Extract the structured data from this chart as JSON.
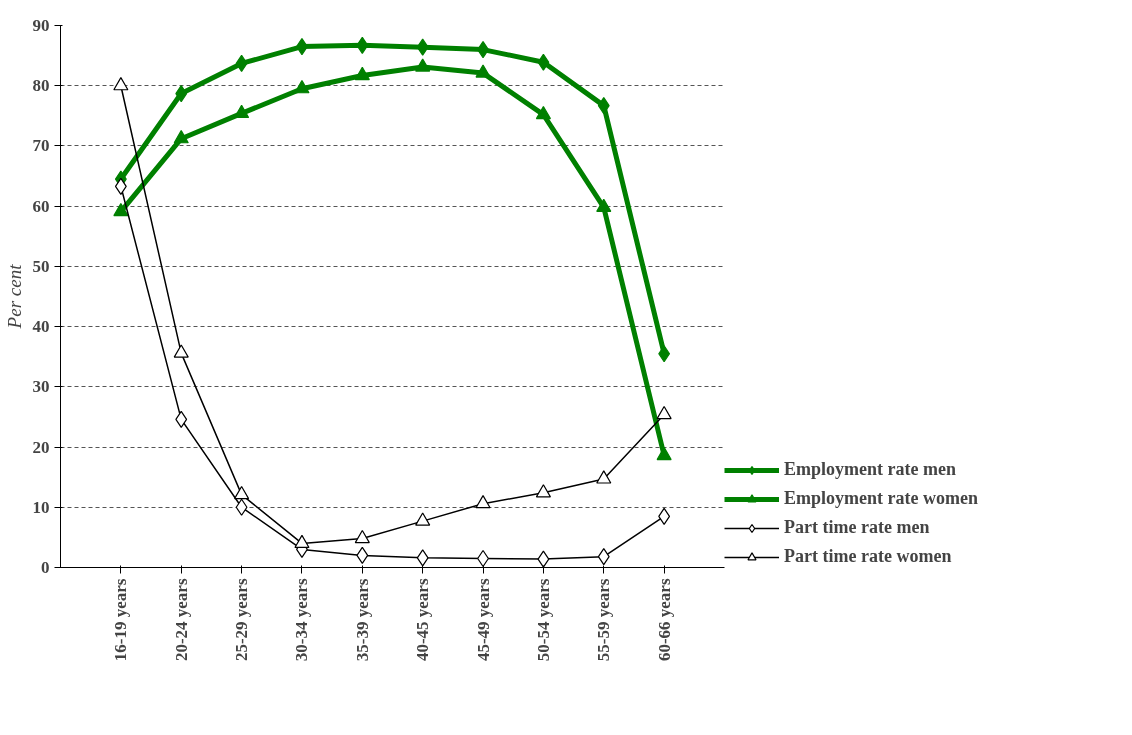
{
  "chart_data": {
    "type": "line",
    "ylabel": "Per cent",
    "categories": [
      "16-19 years",
      "20-24 years",
      "25-29 years",
      "30-34 years",
      "35-39 years",
      "40-45 years",
      "45-49 years",
      "50-54 years",
      "55-59 years",
      "60-66 years"
    ],
    "series": [
      {
        "name": "Employment rate men",
        "color": "#008000",
        "marker": "diamond",
        "values": [
          64.5,
          78.7,
          83.7,
          86.5,
          86.7,
          86.4,
          86.0,
          83.9,
          76.7,
          35.5
        ]
      },
      {
        "name": "Employment rate women",
        "color": "#008000",
        "marker": "triangle",
        "values": [
          59.1,
          71.2,
          75.4,
          79.5,
          81.7,
          83.1,
          82.1,
          75.2,
          59.8,
          18.6
        ]
      },
      {
        "name": "Part time rate men",
        "color": "#000000",
        "marker": "diamond",
        "values": [
          63.3,
          24.6,
          10.0,
          3.0,
          2.0,
          1.6,
          1.5,
          1.4,
          1.8,
          8.5
        ]
      },
      {
        "name": "Part time rate women",
        "color": "#000000",
        "marker": "triangle",
        "values": [
          80.0,
          35.6,
          12.1,
          4.0,
          4.8,
          7.7,
          10.6,
          12.4,
          14.7,
          25.4
        ]
      }
    ],
    "ylim": [
      0,
      90
    ],
    "yticks": [
      0,
      10,
      20,
      30,
      40,
      50,
      60,
      70,
      80,
      90
    ],
    "grid": "y",
    "legend": "right",
    "line_style": "solid"
  }
}
